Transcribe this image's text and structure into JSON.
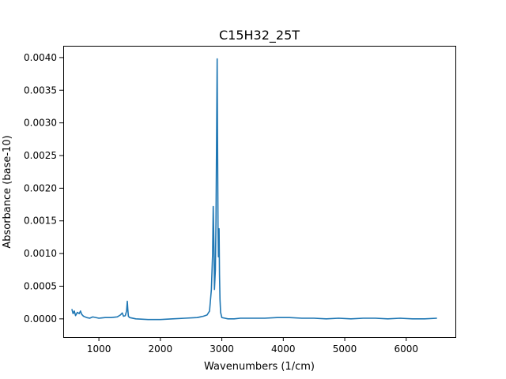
{
  "chart_data": {
    "type": "line",
    "title": "C15H32_25T",
    "xlabel": "Wavenumbers (1/cm)",
    "ylabel": "Absorbance (base-10)",
    "xlim": [
      420,
      6800
    ],
    "ylim": [
      -0.00028,
      0.00418
    ],
    "xticks": [
      1000,
      2000,
      3000,
      4000,
      5000,
      6000
    ],
    "xtick_labels": [
      "1000",
      "2000",
      "3000",
      "4000",
      "5000",
      "6000"
    ],
    "yticks": [
      0.0,
      0.0005,
      0.001,
      0.0015,
      0.002,
      0.0025,
      0.003,
      0.0035,
      0.004
    ],
    "ytick_labels": [
      "0.0000",
      "0.0005",
      "0.0010",
      "0.0015",
      "0.0020",
      "0.0025",
      "0.0030",
      "0.0035",
      "0.0040"
    ],
    "grid": false,
    "color": "#1f77b4",
    "series": [
      {
        "x": [
          560,
          580,
          600,
          620,
          650,
          680,
          700,
          720,
          750,
          800,
          850,
          900,
          1000,
          1100,
          1200,
          1300,
          1350,
          1380,
          1400,
          1430,
          1450,
          1462,
          1470,
          1480,
          1500,
          1600,
          1800,
          2000,
          2200,
          2400,
          2600,
          2700,
          2760,
          2800,
          2830,
          2850,
          2860,
          2872,
          2880,
          2895,
          2905,
          2915,
          2924,
          2930,
          2938,
          2945,
          2955,
          2962,
          2970,
          2980,
          3000,
          3050,
          3100,
          3200,
          3300,
          3500,
          3700,
          3900,
          4100,
          4300,
          4500,
          4700,
          4900,
          5100,
          5300,
          5500,
          5700,
          5900,
          6100,
          6300,
          6500
        ],
        "y": [
          0.00015,
          8e-05,
          0.00012,
          5e-05,
          0.0001,
          8e-05,
          0.00012,
          7e-05,
          4e-05,
          2e-05,
          1e-05,
          3e-05,
          1e-05,
          2e-05,
          2e-05,
          3e-05,
          6e-05,
          9e-05,
          4e-05,
          5e-05,
          0.00012,
          0.00027,
          0.00015,
          4e-05,
          2e-05,
          0.0,
          -1e-05,
          -1e-05,
          0.0,
          1e-05,
          2e-05,
          4e-05,
          6e-05,
          0.00012,
          0.00045,
          0.001,
          0.00172,
          0.0011,
          0.00045,
          0.00075,
          0.0015,
          0.0028,
          0.00398,
          0.0028,
          0.0014,
          0.00095,
          0.00138,
          0.00068,
          0.0003,
          0.0001,
          2e-05,
          1e-05,
          0.0,
          0.0,
          1e-05,
          1e-05,
          1e-05,
          2e-05,
          2e-05,
          1e-05,
          1e-05,
          0.0,
          1e-05,
          0.0,
          1e-05,
          1e-05,
          0.0,
          1e-05,
          0.0,
          0.0,
          1e-05
        ]
      }
    ]
  }
}
